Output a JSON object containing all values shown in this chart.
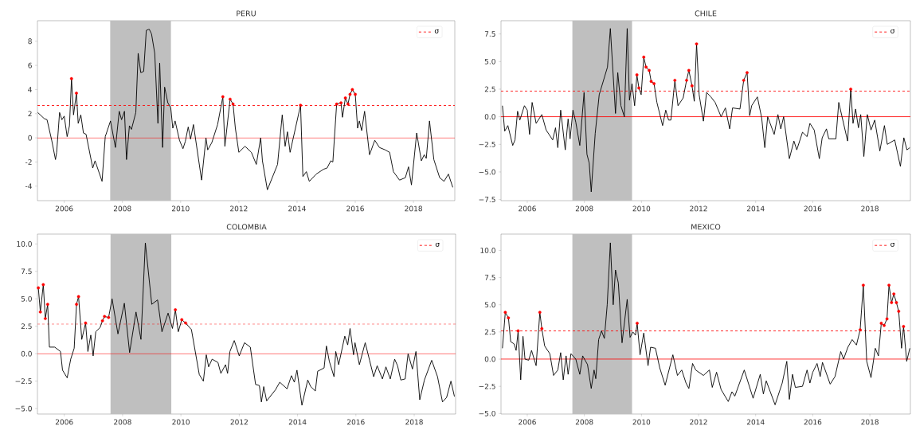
{
  "chart_data": [
    {
      "type": "line",
      "title": "PERU",
      "xlim": [
        2005.08,
        2019.42
      ],
      "ylim": [
        -5.2,
        9.7
      ],
      "xticks": [
        2006,
        2008,
        2010,
        2012,
        2014,
        2016,
        2018
      ],
      "yticks": [
        -4,
        -2,
        0,
        2,
        4,
        6,
        8
      ],
      "legend": "top right",
      "series": [
        {
          "type": "line",
          "color": "#000000",
          "x": [
            2005.09,
            2005.31,
            2005.41,
            2005.57,
            2005.7,
            2005.74,
            2005.84,
            2005.92,
            2006.0,
            2006.1,
            2006.18,
            2006.25,
            2006.32,
            2006.42,
            2006.48,
            2006.57,
            2006.66,
            2006.75,
            2006.98,
            2007.06,
            2007.3,
            2007.41,
            2007.59,
            2007.76,
            2007.89,
            2007.97,
            2008.07,
            2008.14,
            2008.24,
            2008.31,
            2008.46,
            2008.54,
            2008.63,
            2008.73,
            2008.82,
            2008.92,
            2009.0,
            2009.11,
            2009.22,
            2009.28,
            2009.38,
            2009.45,
            2009.56,
            2009.66,
            2009.73,
            2009.81,
            2009.96,
            2010.08,
            2010.16,
            2010.26,
            2010.34,
            2010.44,
            2010.72,
            2010.87,
            2010.93,
            2011.07,
            2011.27,
            2011.45,
            2011.52,
            2011.7,
            2011.8,
            2011.88,
            2012.0,
            2012.21,
            2012.43,
            2012.6,
            2012.75,
            2012.81,
            2012.98,
            2013.33,
            2013.49,
            2013.59,
            2013.67,
            2013.76,
            2014.12,
            2014.2,
            2014.32,
            2014.42,
            2014.66,
            2014.91,
            2015.03,
            2015.16,
            2015.23,
            2015.36,
            2015.51,
            2015.56,
            2015.66,
            2015.75,
            2015.82,
            2015.9,
            2016.0,
            2016.08,
            2016.14,
            2016.22,
            2016.32,
            2016.49,
            2016.67,
            2016.83,
            2017.03,
            2017.18,
            2017.31,
            2017.52,
            2017.72,
            2017.83,
            2017.93,
            2018.11,
            2018.27,
            2018.37,
            2018.44,
            2018.55,
            2018.7,
            2018.9,
            2019.05,
            2019.2,
            2019.35
          ],
          "values": [
            2.1,
            1.6,
            1.5,
            -0.2,
            -1.8,
            -1.2,
            2.1,
            1.5,
            1.8,
            0.1,
            1.0,
            4.9,
            1.9,
            3.7,
            1.2,
            1.9,
            0.4,
            0.3,
            -2.5,
            -1.9,
            -3.6,
            0.1,
            1.4,
            -0.8,
            2.2,
            1.5,
            2.2,
            -1.8,
            1.0,
            0.7,
            2.1,
            7.0,
            5.4,
            5.5,
            8.9,
            9.0,
            8.6,
            7.0,
            1.2,
            6.2,
            -0.8,
            4.2,
            2.9,
            2.5,
            0.8,
            1.4,
            -0.2,
            -0.9,
            -0.3,
            0.9,
            -0.1,
            1.1,
            -3.5,
            0.0,
            -1.0,
            -0.4,
            1.1,
            3.4,
            -0.7,
            3.2,
            2.8,
            0.8,
            -1.2,
            -0.7,
            -1.2,
            -2.2,
            0.0,
            -1.9,
            -4.3,
            -2.2,
            1.9,
            -0.7,
            0.5,
            -1.2,
            2.7,
            -3.2,
            -2.8,
            -3.6,
            -3.0,
            -2.6,
            -2.5,
            -1.9,
            -2.0,
            2.8,
            2.9,
            1.7,
            3.3,
            2.8,
            3.6,
            4.0,
            3.6,
            0.8,
            1.4,
            0.6,
            2.2,
            -1.4,
            -0.2,
            -0.8,
            -1.0,
            -1.2,
            -2.8,
            -3.5,
            -3.3,
            -2.4,
            -3.9,
            0.4,
            -1.9,
            -1.4,
            -1.7,
            1.4,
            -1.8,
            -3.3,
            -3.6,
            -3.0,
            -4.1
          ]
        },
        {
          "type": "scatter",
          "color": "#ff0000",
          "marker": "circle",
          "x": [
            2006.25,
            2006.42,
            2011.45,
            2011.7,
            2011.8,
            2014.12,
            2015.36,
            2015.51,
            2015.66,
            2015.75,
            2015.82,
            2015.9,
            2016.0
          ],
          "values": [
            4.9,
            3.7,
            3.4,
            3.2,
            2.8,
            2.7,
            2.8,
            2.9,
            3.3,
            2.8,
            3.6,
            4.0,
            3.6
          ]
        }
      ],
      "ref_lines": [
        {
          "axis": "y",
          "value": 0,
          "color": "#ff0000",
          "line_style": "solid"
        },
        {
          "axis": "y",
          "value": 2.68,
          "label": "σ",
          "color": "#ff0000",
          "line_style": "dashed"
        }
      ],
      "bands": [
        {
          "axis": "x",
          "from": 2007.58,
          "to": 2009.67,
          "color": "#bfbfbf"
        }
      ]
    },
    {
      "type": "line",
      "title": "CHILE",
      "xlim": [
        2005.08,
        2019.42
      ],
      "ylim": [
        -7.6,
        8.7
      ],
      "xticks": [
        2006,
        2008,
        2010,
        2012,
        2014,
        2016,
        2018
      ],
      "yticks": [
        {
          "value": -7.5,
          "label": "−7.5"
        },
        {
          "value": -5,
          "label": "−5.0"
        },
        {
          "value": -2.5,
          "label": "−2.5"
        },
        {
          "value": 0,
          "label": "0.0"
        },
        {
          "value": 2.5,
          "label": "2.5"
        },
        {
          "value": 5,
          "label": "5.0"
        },
        {
          "value": 7.5,
          "label": "7.5"
        }
      ],
      "legend": "top right",
      "series": [
        {
          "type": "line",
          "color": "#000000",
          "x": [
            2005.13,
            2005.21,
            2005.32,
            2005.49,
            2005.57,
            2005.66,
            2005.74,
            2005.9,
            2006.0,
            2006.08,
            2006.17,
            2006.31,
            2006.51,
            2006.66,
            2006.89,
            2006.99,
            2007.07,
            2007.17,
            2007.33,
            2007.43,
            2007.5,
            2007.6,
            2007.7,
            2007.84,
            2007.99,
            2008.09,
            2008.17,
            2008.24,
            2008.38,
            2008.52,
            2008.81,
            2008.91,
            2009.09,
            2009.17,
            2009.28,
            2009.4,
            2009.5,
            2009.58,
            2009.67,
            2009.76,
            2009.84,
            2009.91,
            2009.99,
            2010.08,
            2010.16,
            2010.27,
            2010.34,
            2010.44,
            2010.54,
            2010.74,
            2010.85,
            2010.95,
            2011.03,
            2011.17,
            2011.28,
            2011.46,
            2011.58,
            2011.66,
            2011.77,
            2011.85,
            2011.93,
            2012.02,
            2012.17,
            2012.28,
            2012.43,
            2012.58,
            2012.79,
            2012.94,
            2013.09,
            2013.19,
            2013.45,
            2013.58,
            2013.7,
            2013.79,
            2013.86,
            2014.06,
            2014.21,
            2014.32,
            2014.42,
            2014.65,
            2014.78,
            2014.88,
            2014.98,
            2015.18,
            2015.34,
            2015.44,
            2015.64,
            2015.8,
            2015.9,
            2016.05,
            2016.23,
            2016.33,
            2016.48,
            2016.56,
            2016.81,
            2016.91,
            2017.22,
            2017.33,
            2017.41,
            2017.5,
            2017.6,
            2017.68,
            2017.79,
            2017.91,
            2018.04,
            2018.17,
            2018.35,
            2018.51,
            2018.61,
            2018.87,
            2019.07,
            2019.19,
            2019.3,
            2019.4
          ],
          "values": [
            1.0,
            -1.3,
            -0.8,
            -2.6,
            -2.1,
            0.5,
            -0.3,
            1.0,
            0.6,
            -1.6,
            1.3,
            -0.6,
            0.2,
            -1.2,
            -2.1,
            -1.0,
            -2.8,
            0.6,
            -3.0,
            -0.2,
            -2.0,
            0.6,
            -0.5,
            -2.6,
            2.2,
            -3.4,
            -4.2,
            -6.8,
            -1.5,
            2.0,
            4.5,
            8.0,
            0.3,
            4.0,
            1.0,
            0.0,
            8.0,
            1.5,
            3.0,
            1.0,
            3.8,
            2.6,
            2.0,
            5.4,
            4.5,
            4.2,
            3.2,
            3.0,
            1.3,
            -0.8,
            0.6,
            -0.3,
            -0.3,
            3.3,
            1.0,
            1.7,
            3.3,
            4.2,
            2.8,
            1.4,
            6.6,
            2.0,
            -0.4,
            2.2,
            1.8,
            1.3,
            0.0,
            0.8,
            -1.1,
            0.8,
            0.7,
            3.3,
            4.0,
            0.1,
            1.0,
            1.8,
            -0.1,
            -2.8,
            0.0,
            -1.6,
            0.2,
            -1.1,
            0.0,
            -3.8,
            -2.2,
            -3.0,
            -1.4,
            -1.8,
            -0.6,
            -1.2,
            -3.8,
            -1.9,
            -1.1,
            -2.0,
            -2.0,
            1.3,
            -2.2,
            2.5,
            -0.6,
            0.7,
            -1.0,
            0.2,
            -3.6,
            0.2,
            -1.2,
            -0.3,
            -3.1,
            -0.8,
            -2.5,
            -2.1,
            -4.5,
            -1.9,
            -3.0,
            -2.8
          ]
        },
        {
          "type": "scatter",
          "color": "#ff0000",
          "marker": "circle",
          "x": [
            2009.84,
            2009.91,
            2010.08,
            2010.16,
            2010.27,
            2010.34,
            2010.44,
            2011.17,
            2011.58,
            2011.66,
            2011.77,
            2011.93,
            2013.58,
            2013.7,
            2017.33
          ],
          "values": [
            3.8,
            2.6,
            5.4,
            4.5,
            4.2,
            3.2,
            3.0,
            3.3,
            3.3,
            4.2,
            2.8,
            6.6,
            3.3,
            4.0,
            2.5
          ]
        }
      ],
      "ref_lines": [
        {
          "axis": "y",
          "value": 0,
          "color": "#ff0000",
          "line_style": "solid"
        },
        {
          "axis": "y",
          "value": 2.33,
          "label": "σ",
          "color": "#ff0000",
          "line_style": "dashed"
        }
      ],
      "bands": [
        {
          "axis": "x",
          "from": 2007.58,
          "to": 2009.67,
          "color": "#bfbfbf"
        }
      ]
    },
    {
      "type": "line",
      "title": "COLOMBIA",
      "xlim": [
        2005.08,
        2019.42
      ],
      "ylim": [
        -5.5,
        10.9
      ],
      "xticks": [
        2006,
        2008,
        2010,
        2012,
        2014,
        2016,
        2018
      ],
      "yticks": [
        {
          "value": -5,
          "label": "−5.0"
        },
        {
          "value": -2.5,
          "label": "−2.5"
        },
        {
          "value": 0,
          "label": "0.0"
        },
        {
          "value": 2.5,
          "label": "2.5"
        },
        {
          "value": 5,
          "label": "5.0"
        },
        {
          "value": 7.5,
          "label": "7.5"
        },
        {
          "value": 10,
          "label": "10.0"
        }
      ],
      "legend": "top right",
      "series": [
        {
          "type": "line",
          "color": "#000000",
          "x": [
            2005.11,
            2005.18,
            2005.28,
            2005.35,
            2005.43,
            2005.49,
            2005.67,
            2005.87,
            2005.94,
            2006.1,
            2006.22,
            2006.34,
            2006.42,
            2006.49,
            2006.6,
            2006.73,
            2006.81,
            2006.91,
            2006.99,
            2007.08,
            2007.23,
            2007.31,
            2007.38,
            2007.52,
            2007.64,
            2007.84,
            2008.06,
            2008.24,
            2008.46,
            2008.63,
            2008.78,
            2009.0,
            2009.2,
            2009.35,
            2009.56,
            2009.71,
            2009.81,
            2009.91,
            2010.03,
            2010.16,
            2010.36,
            2010.63,
            2010.77,
            2010.87,
            2010.95,
            2011.07,
            2011.27,
            2011.37,
            2011.53,
            2011.6,
            2011.68,
            2011.83,
            2012.0,
            2012.18,
            2012.38,
            2012.56,
            2012.69,
            2012.76,
            2012.84,
            2012.94,
            2013.24,
            2013.39,
            2013.64,
            2013.79,
            2013.89,
            2013.98,
            2014.15,
            2014.35,
            2014.45,
            2014.61,
            2014.69,
            2014.91,
            2014.99,
            2015.09,
            2015.25,
            2015.31,
            2015.41,
            2015.62,
            2015.72,
            2015.8,
            2015.92,
            2015.97,
            2016.12,
            2016.32,
            2016.47,
            2016.61,
            2016.73,
            2016.91,
            2017.03,
            2017.18,
            2017.33,
            2017.43,
            2017.54,
            2017.69,
            2017.79,
            2017.94,
            2018.06,
            2018.19,
            2018.35,
            2018.6,
            2018.8,
            2018.97,
            2019.11,
            2019.26,
            2019.38
          ],
          "values": [
            6.0,
            3.8,
            6.3,
            3.2,
            4.5,
            0.6,
            0.6,
            0.2,
            -1.5,
            -2.2,
            -0.5,
            0.5,
            4.5,
            5.2,
            1.3,
            2.8,
            0.2,
            1.7,
            -0.2,
            2.0,
            2.4,
            3.0,
            3.4,
            3.3,
            5.0,
            1.8,
            4.6,
            0.1,
            3.8,
            1.3,
            10.1,
            4.5,
            4.9,
            2.0,
            3.7,
            2.3,
            4.0,
            2.0,
            3.1,
            2.8,
            2.2,
            -1.9,
            -2.5,
            -0.1,
            -1.2,
            -0.5,
            -0.8,
            -1.8,
            -1.0,
            -1.8,
            0.2,
            1.2,
            -0.2,
            1.0,
            0.6,
            -2.8,
            -2.9,
            -4.4,
            -3.0,
            -4.3,
            -3.3,
            -2.6,
            -3.2,
            -2.0,
            -2.6,
            -1.5,
            -4.7,
            -2.4,
            -3.0,
            -3.4,
            -1.6,
            -1.3,
            0.7,
            -0.7,
            -2.1,
            0.2,
            -1.0,
            1.6,
            0.8,
            2.3,
            -0.1,
            1.0,
            -1.0,
            1.0,
            -0.6,
            -2.1,
            -1.1,
            -2.3,
            -1.2,
            -2.3,
            -0.5,
            -1.1,
            -2.4,
            -2.3,
            0.0,
            -1.4,
            0.2,
            -4.2,
            -2.4,
            -0.6,
            -2.1,
            -4.4,
            -4.0,
            -2.5,
            -3.9
          ]
        },
        {
          "type": "scatter",
          "color": "#ff0000",
          "marker": "circle",
          "x": [
            2005.11,
            2005.18,
            2005.28,
            2005.35,
            2005.43,
            2006.42,
            2006.49,
            2006.73,
            2007.31,
            2007.38,
            2007.52,
            2009.81,
            2010.03,
            2010.16
          ],
          "values": [
            6.0,
            3.8,
            6.3,
            3.2,
            4.5,
            4.5,
            5.2,
            2.8,
            3.0,
            3.4,
            3.3,
            4.0,
            3.1,
            2.8
          ]
        }
      ],
      "ref_lines": [
        {
          "axis": "y",
          "value": 0,
          "color": "#ff0000",
          "line_style": "solid"
        },
        {
          "axis": "y",
          "value": 2.7,
          "label": "σ",
          "color": "#ff0000",
          "line_style": "dashed"
        }
      ],
      "bands": [
        {
          "axis": "x",
          "from": 2007.58,
          "to": 2009.67,
          "color": "#bfbfbf"
        }
      ]
    },
    {
      "type": "line",
      "title": "MEXICO",
      "xlim": [
        2005.08,
        2019.42
      ],
      "ylim": [
        -5.05,
        11.5
      ],
      "xticks": [
        2006,
        2008,
        2010,
        2012,
        2014,
        2016,
        2018
      ],
      "yticks": [
        {
          "value": -5,
          "label": "−5.0"
        },
        {
          "value": -2.5,
          "label": "−2.5"
        },
        {
          "value": 0,
          "label": "0.0"
        },
        {
          "value": 2.5,
          "label": "2.5"
        },
        {
          "value": 5,
          "label": "5.0"
        },
        {
          "value": 7.5,
          "label": "7.5"
        },
        {
          "value": 10,
          "label": "10.0"
        }
      ],
      "legend": "top right",
      "series": [
        {
          "type": "line",
          "color": "#000000",
          "x": [
            2005.13,
            2005.23,
            2005.34,
            2005.42,
            2005.54,
            2005.61,
            2005.68,
            2005.77,
            2005.85,
            2005.92,
            2006.05,
            2006.15,
            2006.31,
            2006.44,
            2006.51,
            2006.61,
            2006.79,
            2006.92,
            2007.07,
            2007.17,
            2007.26,
            2007.36,
            2007.43,
            2007.53,
            2007.7,
            2007.84,
            2007.94,
            2008.11,
            2008.24,
            2008.34,
            2008.4,
            2008.5,
            2008.6,
            2008.7,
            2008.8,
            2008.91,
            2009.01,
            2009.09,
            2009.19,
            2009.32,
            2009.5,
            2009.6,
            2009.7,
            2009.79,
            2009.85,
            2009.95,
            2010.08,
            2010.23,
            2010.32,
            2010.49,
            2010.64,
            2010.83,
            2011.1,
            2011.26,
            2011.41,
            2011.56,
            2011.66,
            2011.79,
            2011.9,
            2012.17,
            2012.38,
            2012.48,
            2012.63,
            2012.79,
            2013.04,
            2013.17,
            2013.27,
            2013.6,
            2013.91,
            2014.16,
            2014.27,
            2014.37,
            2014.68,
            2014.93,
            2015.09,
            2015.18,
            2015.29,
            2015.39,
            2015.64,
            2015.8,
            2015.9,
            2016.0,
            2016.15,
            2016.26,
            2016.34,
            2016.61,
            2016.78,
            2016.98,
            2017.08,
            2017.23,
            2017.38,
            2017.53,
            2017.66,
            2017.77,
            2017.89,
            2018.04,
            2018.19,
            2018.3,
            2018.4,
            2018.5,
            2018.6,
            2018.67,
            2018.76,
            2018.84,
            2018.93,
            2019.01,
            2019.11,
            2019.18,
            2019.29,
            2019.4
          ],
          "values": [
            1.0,
            4.3,
            3.8,
            1.6,
            1.4,
            0.8,
            2.6,
            -1.9,
            2.1,
            0.0,
            -0.1,
            0.8,
            -0.6,
            4.3,
            2.8,
            1.2,
            0.5,
            -1.5,
            -1.0,
            0.6,
            -1.9,
            0.3,
            -1.4,
            0.5,
            0.0,
            -1.4,
            0.3,
            -0.5,
            -2.7,
            -1.0,
            -1.8,
            1.8,
            2.6,
            1.9,
            5.0,
            10.7,
            5.0,
            8.2,
            7.0,
            1.5,
            5.5,
            2.0,
            2.5,
            2.2,
            3.3,
            0.4,
            2.4,
            -0.6,
            1.1,
            1.0,
            -0.8,
            -2.4,
            0.4,
            -1.5,
            -1.0,
            -2.2,
            -2.7,
            -0.4,
            -1.0,
            -1.5,
            -1.0,
            -2.6,
            -1.2,
            -2.8,
            -3.9,
            -3.0,
            -3.4,
            -1.0,
            -3.6,
            -1.4,
            -3.2,
            -2.0,
            -4.2,
            -2.2,
            -0.2,
            -3.7,
            -1.4,
            -2.6,
            -2.5,
            -1.0,
            -2.2,
            -1.2,
            -0.4,
            -1.6,
            -0.3,
            -2.3,
            -1.6,
            0.7,
            0.0,
            1.1,
            1.8,
            1.3,
            2.7,
            6.8,
            -0.2,
            -1.7,
            1.0,
            0.3,
            3.3,
            3.1,
            3.7,
            6.8,
            5.2,
            6.0,
            5.2,
            4.4,
            1.0,
            3.0,
            -0.2,
            1.0
          ]
        },
        {
          "type": "scatter",
          "color": "#ff0000",
          "marker": "circle",
          "x": [
            2005.23,
            2005.34,
            2005.68,
            2006.44,
            2006.51,
            2009.85,
            2017.66,
            2017.77,
            2018.4,
            2018.5,
            2018.6,
            2018.67,
            2018.76,
            2018.84,
            2018.93,
            2019.01,
            2019.18
          ],
          "values": [
            4.3,
            3.8,
            2.6,
            4.3,
            2.8,
            3.3,
            2.7,
            6.8,
            3.3,
            3.1,
            3.7,
            6.8,
            5.2,
            6.0,
            5.2,
            4.4,
            3.0
          ]
        }
      ],
      "ref_lines": [
        {
          "axis": "y",
          "value": 0,
          "color": "#ff0000",
          "line_style": "solid"
        },
        {
          "axis": "y",
          "value": 2.59,
          "label": "σ",
          "color": "#ff0000",
          "line_style": "dashed"
        }
      ],
      "bands": [
        {
          "axis": "x",
          "from": 2007.58,
          "to": 2009.67,
          "color": "#bfbfbf"
        }
      ]
    }
  ]
}
